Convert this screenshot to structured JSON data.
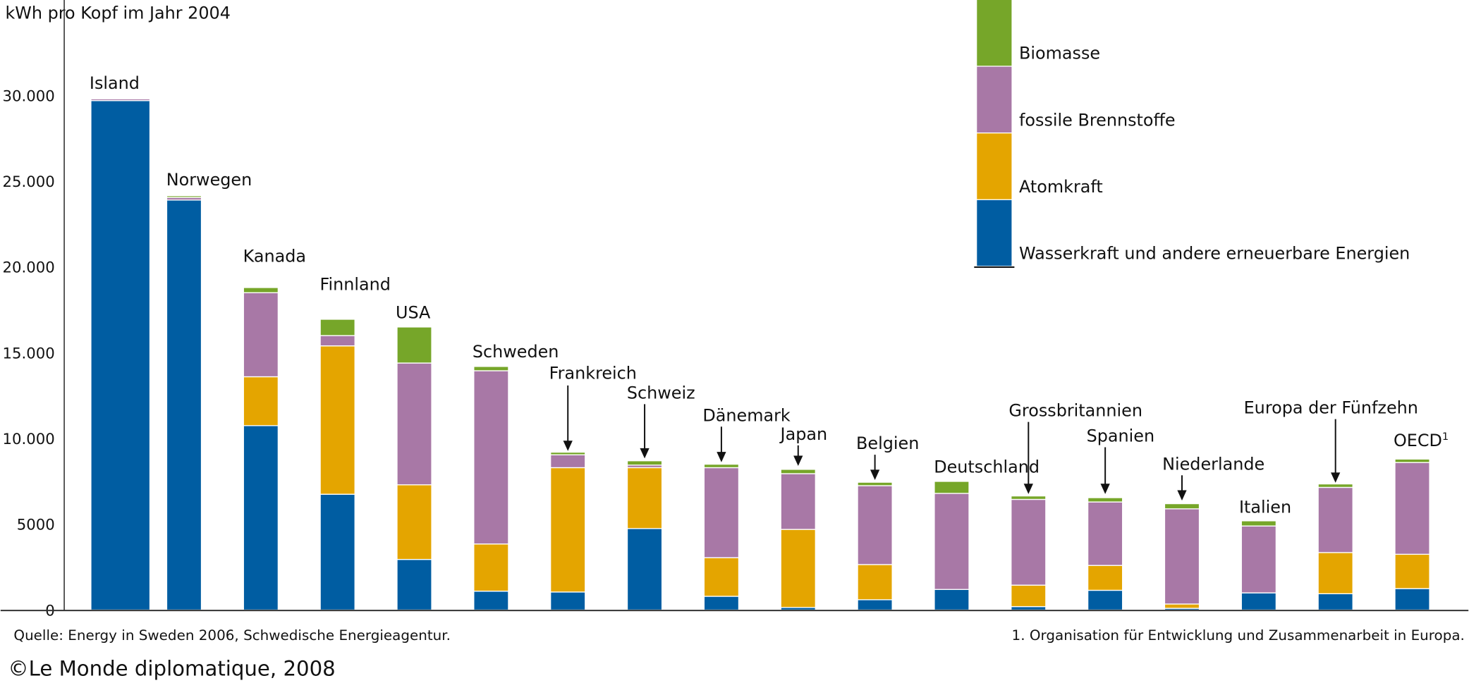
{
  "chart_data": {
    "type": "bar",
    "stacked": true,
    "title": "kWh pro Kopf im Jahr 2004",
    "ylabel": "kWh pro Kopf im Jahr 2004",
    "ylim": [
      0,
      33000
    ],
    "yticks": [
      0,
      5000,
      10000,
      15000,
      20000,
      25000,
      30000
    ],
    "ytick_labels": [
      "0",
      "5000",
      "10.000",
      "15.000",
      "20.000",
      "25.000",
      "30.000"
    ],
    "grid": false,
    "legend_placement": "top-right",
    "categories": [
      "Island",
      "Norwegen",
      "Kanada",
      "Finnland",
      "USA",
      "Schweden",
      "Frankreich",
      "Schweiz",
      "Dänemark",
      "Japan",
      "Belgien",
      "Deutschland",
      "Grossbritannien",
      "Spanien",
      "Niederlande",
      "Italien",
      "Europa der Fünfzehn",
      "OECD"
    ],
    "category_superscripts": {
      "OECD": "1"
    },
    "series": [
      {
        "name": "Wasserkraft und andere erneuerbare Energien",
        "color": "#005da2",
        "values": [
          29700,
          23900,
          10750,
          6750,
          2950,
          1100,
          1050,
          4750,
          800,
          150,
          600,
          1200,
          200,
          1150,
          100,
          1000,
          950,
          1250
        ]
      },
      {
        "name": "Atomkraft",
        "color": "#e4a500",
        "values": [
          0,
          0,
          2850,
          8650,
          4350,
          2750,
          7250,
          3550,
          2250,
          4550,
          2050,
          0,
          1250,
          1450,
          250,
          0,
          2400,
          2000
        ]
      },
      {
        "name": "fossile Brennstoffe",
        "color": "#a878a6",
        "values": [
          100,
          150,
          4900,
          600,
          7100,
          10100,
          750,
          150,
          5250,
          3250,
          4600,
          5600,
          5000,
          3700,
          5550,
          3900,
          3800,
          5350
        ]
      },
      {
        "name": "Biomasse",
        "color": "#76a629",
        "values": [
          50,
          100,
          300,
          950,
          2100,
          250,
          150,
          250,
          200,
          250,
          200,
          700,
          200,
          250,
          300,
          300,
          200,
          200
        ]
      }
    ]
  },
  "footer": {
    "source": "Quelle: Energy in Sweden 2006, Schwedische Energieagentur.",
    "footnote": "1. Organisation für Entwicklung und Zusammenarbeit in Europa.",
    "copyright": "©Le Monde diplomatique, 2008"
  }
}
